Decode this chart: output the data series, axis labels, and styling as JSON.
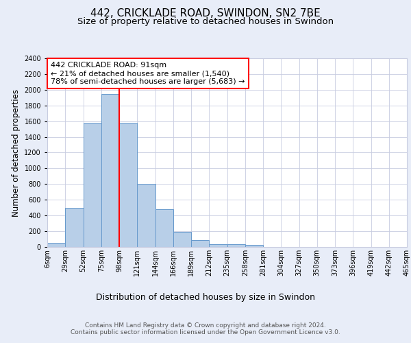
{
  "title": "442, CRICKLADE ROAD, SWINDON, SN2 7BE",
  "subtitle": "Size of property relative to detached houses in Swindon",
  "xlabel": "Distribution of detached houses by size in Swindon",
  "ylabel": "Number of detached properties",
  "bin_labels": [
    "6sqm",
    "29sqm",
    "52sqm",
    "75sqm",
    "98sqm",
    "121sqm",
    "144sqm",
    "166sqm",
    "189sqm",
    "212sqm",
    "235sqm",
    "258sqm",
    "281sqm",
    "304sqm",
    "327sqm",
    "350sqm",
    "373sqm",
    "396sqm",
    "419sqm",
    "442sqm",
    "465sqm"
  ],
  "bar_heights": [
    50,
    500,
    1580,
    1950,
    1580,
    800,
    480,
    190,
    90,
    35,
    35,
    25,
    0,
    0,
    0,
    0,
    0,
    0,
    0,
    0
  ],
  "bar_color": "#b8cfe8",
  "bar_edge_color": "#6699cc",
  "bar_edge_width": 0.7,
  "vline_color": "red",
  "vline_x": 3.5,
  "ylim": [
    0,
    2400
  ],
  "yticks": [
    0,
    200,
    400,
    600,
    800,
    1000,
    1200,
    1400,
    1600,
    1800,
    2000,
    2200,
    2400
  ],
  "annotation_text": "442 CRICKLADE ROAD: 91sqm\n← 21% of detached houses are smaller (1,540)\n78% of semi-detached houses are larger (5,683) →",
  "annotation_box_color": "white",
  "annotation_box_edge_color": "red",
  "footer_text": "Contains HM Land Registry data © Crown copyright and database right 2024.\nContains public sector information licensed under the Open Government Licence v3.0.",
  "bg_color": "#e8edf8",
  "plot_bg_color": "white",
  "grid_color": "#c8cce0",
  "title_fontsize": 11,
  "subtitle_fontsize": 9.5,
  "xlabel_fontsize": 9,
  "ylabel_fontsize": 8.5,
  "tick_fontsize": 7,
  "footer_fontsize": 6.5,
  "annotation_fontsize": 8
}
